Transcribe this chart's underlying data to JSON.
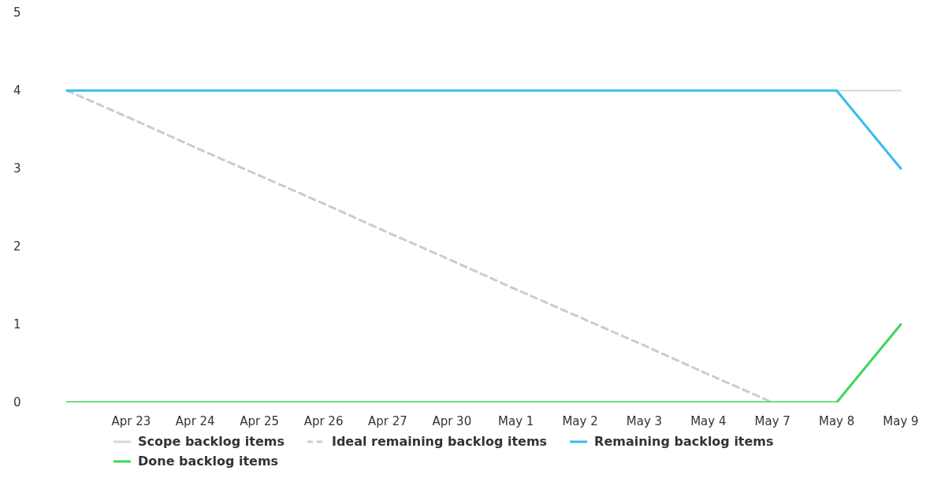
{
  "chart_data": {
    "type": "line",
    "categories": [
      null,
      "Apr 23",
      "Apr 24",
      "Apr 25",
      "Apr 26",
      "Apr 27",
      "Apr 30",
      "May 1",
      "May 2",
      "May 3",
      "May 4",
      "May 7",
      "May 8",
      "May 9"
    ],
    "series": [
      {
        "name": "Scope backlog items",
        "color": "#d9d9d9",
        "line_style": "solid",
        "values": [
          null,
          null,
          null,
          null,
          null,
          null,
          null,
          null,
          null,
          null,
          null,
          null,
          4,
          4
        ]
      },
      {
        "name": "Ideal remaining backlog items",
        "color": "#cccccc",
        "line_style": "dashed",
        "values": [
          4,
          3.64,
          3.27,
          2.91,
          2.55,
          2.18,
          1.82,
          1.45,
          1.09,
          0.73,
          0.36,
          0,
          null,
          null
        ]
      },
      {
        "name": "Remaining backlog items",
        "color": "#35bdf0",
        "line_style": "solid",
        "values": [
          4,
          4,
          4,
          4,
          4,
          4,
          4,
          4,
          4,
          4,
          4,
          4,
          4,
          3
        ]
      },
      {
        "name": "Done backlog items",
        "color": "#3ed65a",
        "line_style": "solid",
        "values": [
          0,
          0,
          0,
          0,
          0,
          0,
          0,
          0,
          0,
          0,
          0,
          0,
          0,
          1
        ]
      }
    ],
    "ylim": [
      0,
      5
    ],
    "yticks": [
      0,
      1,
      2,
      3,
      4,
      5
    ],
    "grid": false,
    "legend": "bottom",
    "marker": "none"
  }
}
